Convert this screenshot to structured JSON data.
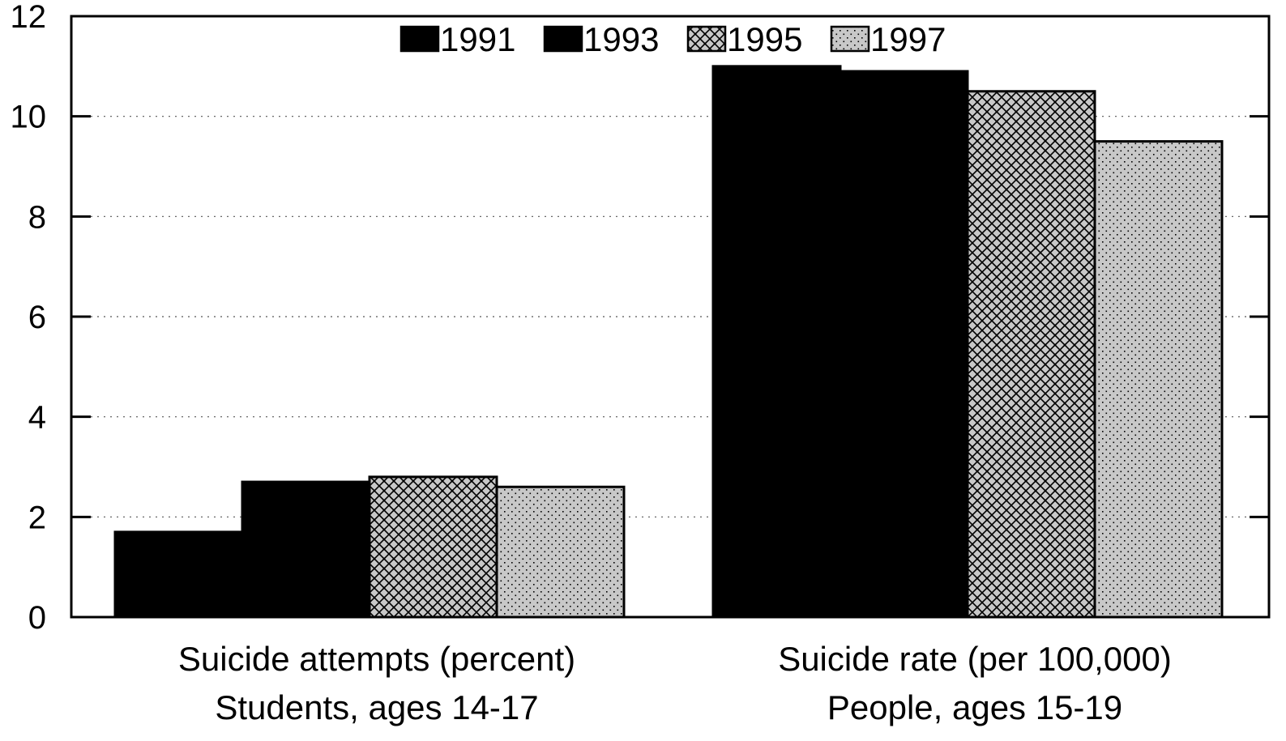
{
  "chart_data": {
    "type": "bar",
    "categories": [
      [
        "Suicide attempts (percent)",
        "Students, ages 14-17"
      ],
      [
        "Suicide rate (per 100,000)",
        "People, ages 15-19"
      ]
    ],
    "series": [
      {
        "name": "1991",
        "values": [
          1.7,
          11.0
        ],
        "pattern": "solid"
      },
      {
        "name": "1993",
        "values": [
          2.7,
          10.9
        ],
        "pattern": "solid"
      },
      {
        "name": "1995",
        "values": [
          2.8,
          10.5
        ],
        "pattern": "crosshatch"
      },
      {
        "name": "1997",
        "values": [
          2.6,
          9.5
        ],
        "pattern": "dots"
      }
    ],
    "title": "",
    "xlabel": "",
    "ylabel": "",
    "ylim": [
      0,
      12
    ],
    "yticks": [
      "0",
      "2",
      "4",
      "6",
      "8",
      "10",
      "12"
    ],
    "grid": "horizontal dotted",
    "legend": "top-center, horizontal",
    "colors": {
      "bar_solid": "#000000",
      "bar_pattern_bg": "#c8c8c8",
      "axis": "#000000",
      "grid": "#555555"
    }
  }
}
